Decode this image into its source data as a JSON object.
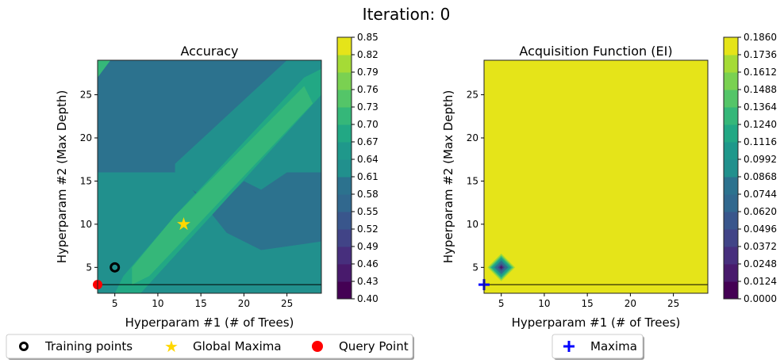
{
  "suptitle": "Iteration: 0",
  "chart_data": [
    {
      "type": "contour",
      "title": "Accuracy",
      "xlabel": "Hyperparam #1 (# of Trees)",
      "ylabel": "Hyperparam #2 (Max Depth)",
      "xlim": [
        3,
        29
      ],
      "ylim": [
        2,
        29
      ],
      "xticks": [
        5,
        10,
        15,
        20,
        25
      ],
      "yticks": [
        5,
        10,
        15,
        20,
        25
      ],
      "colormap": "viridis",
      "colorbar_levels": [
        "0.40",
        "0.43",
        "0.46",
        "0.49",
        "0.52",
        "0.55",
        "0.58",
        "0.61",
        "0.64",
        "0.67",
        "0.70",
        "0.73",
        "0.76",
        "0.79",
        "0.82",
        "0.85"
      ],
      "training_points": [
        {
          "x": 5,
          "y": 5
        }
      ],
      "global_maxima": {
        "x": 13,
        "y": 10
      },
      "query_point": {
        "x": 3,
        "y": 3
      },
      "hline_y": 3,
      "legend": {
        "placement": "bottom",
        "entries": [
          {
            "label": "Training points",
            "marker": "ring",
            "color": "#000000"
          },
          {
            "label": "Global Maxima",
            "marker": "star",
            "color": "#ffd700"
          },
          {
            "label": "Query Point",
            "marker": "circle",
            "color": "#ff0000"
          }
        ]
      }
    },
    {
      "type": "contour",
      "title": "Acquisition Function (EI)",
      "xlabel": "Hyperparam #1 (# of Trees)",
      "ylabel": "Hyperparam #2 (Max Depth)",
      "xlim": [
        3,
        29
      ],
      "ylim": [
        2,
        29
      ],
      "xticks": [
        5,
        10,
        15,
        20,
        25
      ],
      "yticks": [
        5,
        10,
        15,
        20,
        25
      ],
      "colormap": "viridis",
      "colorbar_levels": [
        "0.0000",
        "0.0124",
        "0.0248",
        "0.0372",
        "0.0496",
        "0.0620",
        "0.0744",
        "0.0868",
        "0.0992",
        "0.1116",
        "0.1240",
        "0.1364",
        "0.1488",
        "0.1612",
        "0.1736",
        "0.1860"
      ],
      "minimum_at": {
        "x": 5,
        "y": 5
      },
      "maxima": {
        "x": 3,
        "y": 3
      },
      "hline_y": 3,
      "legend": {
        "placement": "bottom",
        "entries": [
          {
            "label": "Maxima",
            "marker": "plus",
            "color": "#0000ff"
          }
        ]
      }
    }
  ]
}
